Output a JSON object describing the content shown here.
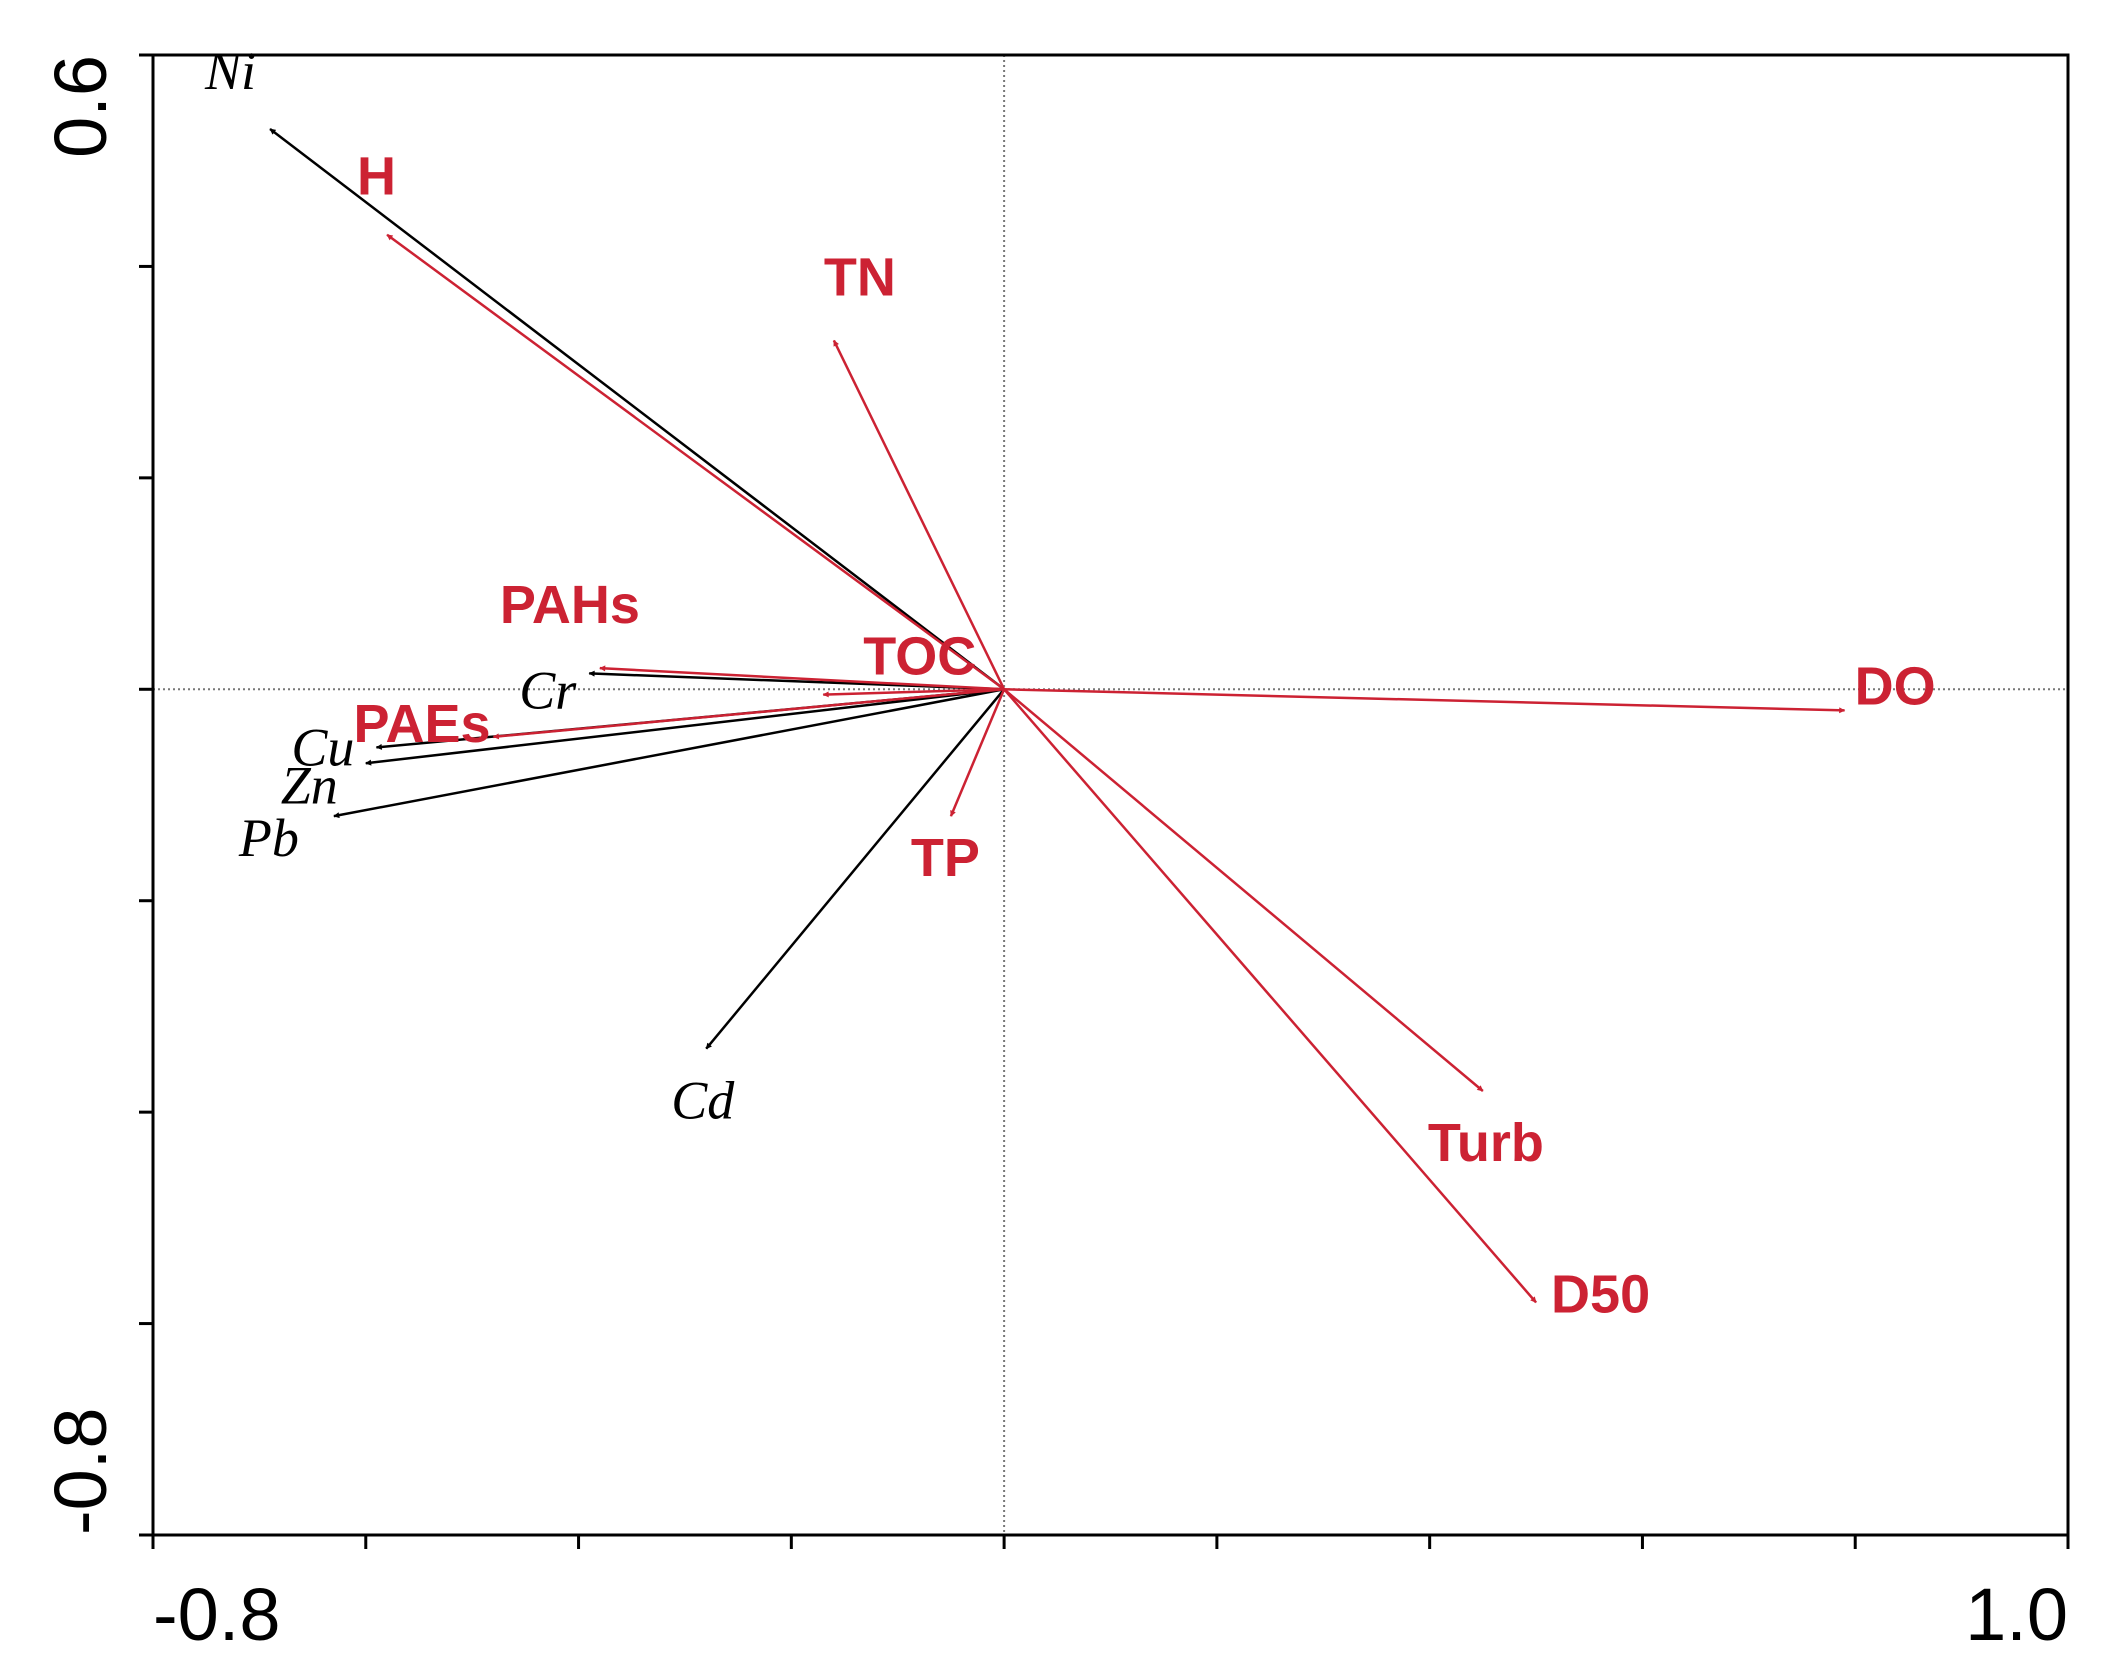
{
  "chart_data": {
    "type": "scatter",
    "subtype": "ordination-biplot",
    "title": "",
    "xlabel": "",
    "ylabel": "",
    "xlim": [
      -0.8,
      1.0
    ],
    "ylim": [
      -0.8,
      0.6
    ],
    "x_tick_labels": [
      "-0.8",
      "1.0"
    ],
    "y_tick_labels": [
      "0.6",
      "-0.8"
    ],
    "x_minor_tick_step": 0.2,
    "y_minor_tick_step": 0.2,
    "reference_lines": {
      "x": 0,
      "y": 0,
      "style": "dotted"
    },
    "grid": false,
    "legend": "none",
    "colors": {
      "environmental": "#cc2233",
      "metals": "#000000",
      "axes": "#000000"
    },
    "series": [
      {
        "group": "environmental",
        "vectors": [
          {
            "label": "H",
            "x": -0.58,
            "y": 0.43
          },
          {
            "label": "TN",
            "x": -0.16,
            "y": 0.33
          },
          {
            "label": "PAHs",
            "x": -0.38,
            "y": 0.02
          },
          {
            "label": "TOC",
            "x": -0.17,
            "y": -0.005
          },
          {
            "label": "PAEs",
            "x": -0.48,
            "y": -0.045
          },
          {
            "label": "DO",
            "x": 0.79,
            "y": -0.02
          },
          {
            "label": "TP",
            "x": -0.05,
            "y": -0.12
          },
          {
            "label": "Turb",
            "x": 0.45,
            "y": -0.38
          },
          {
            "label": "D50",
            "x": 0.5,
            "y": -0.58
          }
        ]
      },
      {
        "group": "metals",
        "vectors": [
          {
            "label": "Ni",
            "x": -0.69,
            "y": 0.53
          },
          {
            "label": "Cr",
            "x": -0.39,
            "y": 0.015
          },
          {
            "label": "Cu",
            "x": -0.59,
            "y": -0.055
          },
          {
            "label": "Zn",
            "x": -0.6,
            "y": -0.07
          },
          {
            "label": "Pb",
            "x": -0.63,
            "y": -0.12
          },
          {
            "label": "Cd",
            "x": -0.28,
            "y": -0.34
          }
        ]
      }
    ]
  }
}
